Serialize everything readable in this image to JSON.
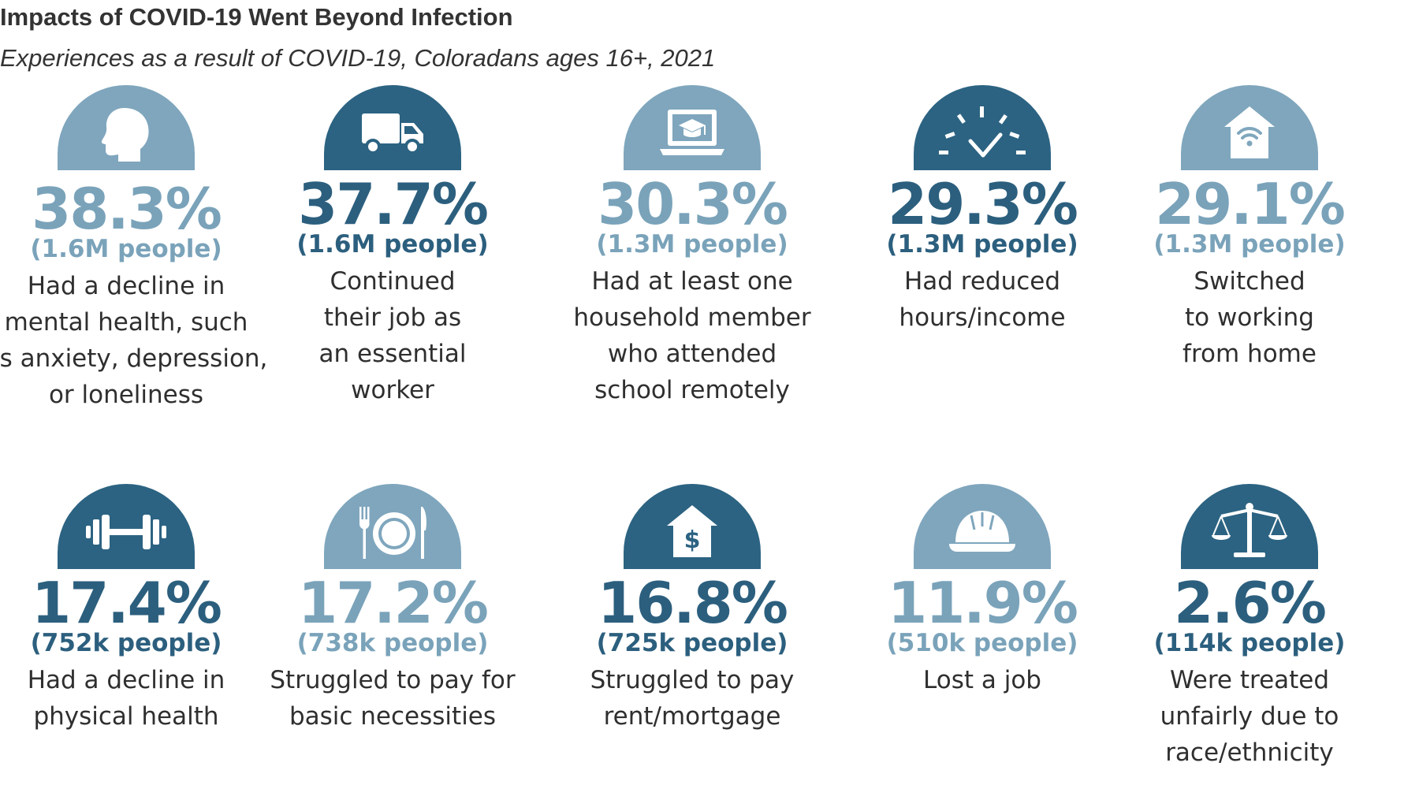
{
  "header": {
    "title": "Impacts of COVID-19 Went Beyond Infection",
    "subtitle": "Experiences as a result of COVID-19, Coloradans ages 16+, 2021"
  },
  "colors": {
    "light": "#7fa6bd",
    "dark": "#2c6382"
  },
  "stats": [
    {
      "icon": "head-icon",
      "shade": "light",
      "pct": "38.3%",
      "people": "(1.6M people)",
      "lines": [
        "Had a decline in",
        "mental health, such",
        "as anxiety, depression,",
        "or loneliness"
      ]
    },
    {
      "icon": "truck-icon",
      "shade": "dark",
      "pct": "37.7%",
      "people": "(1.6M people)",
      "lines": [
        "Continued",
        "their job as",
        "an essential",
        "worker"
      ]
    },
    {
      "icon": "laptop-graduation-icon",
      "shade": "light",
      "pct": "30.3%",
      "people": "(1.3M people)",
      "lines": [
        "Had at least one",
        "household member",
        "who attended",
        "school remotely"
      ]
    },
    {
      "icon": "gauge-icon",
      "shade": "dark",
      "pct": "29.3%",
      "people": "(1.3M people)",
      "lines": [
        "Had reduced",
        "hours/income"
      ]
    },
    {
      "icon": "home-wifi-icon",
      "shade": "light",
      "pct": "29.1%",
      "people": "(1.3M people)",
      "lines": [
        "Switched",
        "to working",
        "from home"
      ]
    },
    {
      "icon": "dumbbell-icon",
      "shade": "dark",
      "pct": "17.4%",
      "people": "(752k people)",
      "lines": [
        "Had a decline in",
        "physical health"
      ]
    },
    {
      "icon": "plate-icon",
      "shade": "light",
      "pct": "17.2%",
      "people": "(738k people)",
      "lines": [
        "Struggled to pay for",
        "basic necessities"
      ]
    },
    {
      "icon": "house-dollar-icon",
      "shade": "dark",
      "pct": "16.8%",
      "people": "(725k people)",
      "lines": [
        "Struggled to pay",
        "rent/mortgage"
      ]
    },
    {
      "icon": "hard-hat-icon",
      "shade": "light",
      "pct": "11.9%",
      "people": "(510k people)",
      "lines": [
        "Lost a job"
      ]
    },
    {
      "icon": "scales-icon",
      "shade": "dark",
      "pct": "2.6%",
      "people": "(114k people)",
      "lines": [
        "Were treated",
        "unfairly due to",
        "race/ethnicity"
      ]
    }
  ]
}
